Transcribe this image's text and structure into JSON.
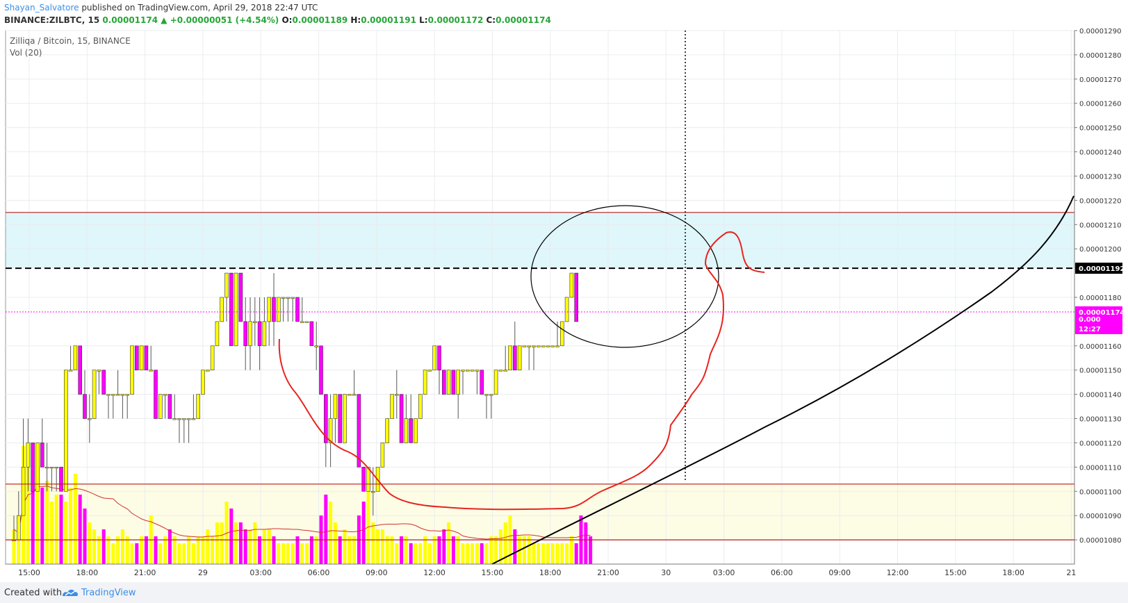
{
  "header": {
    "author": "Shayan_Salvatore",
    "published_text": " published on TradingView.com, April 29, 2018 22:47 UTC",
    "symbol": "BINANCE:ZILBTC, 15",
    "last": "0.00001174",
    "arrow": "▲",
    "change": "+0.00000051 (+4.54%)",
    "o_label": "O:",
    "o_value": "0.00001189",
    "h_label": "H:",
    "h_value": "0.00001191",
    "l_label": "L:",
    "l_value": "0.00001172",
    "c_label": "C:",
    "c_value": "0.00001174"
  },
  "legend": {
    "title": "Zilliqa / Bitcoin, 15, BINANCE",
    "vol": "Vol (20)"
  },
  "footer": {
    "created_with": "Created with",
    "brand": "TradingView"
  },
  "colors": {
    "up": "#ffff00",
    "down": "#ff00ff",
    "resistance_zone": "#dff6fa",
    "support_zone": "#fdfde6",
    "zone_line": "#b71c1c",
    "drawing_red": "#e8231e",
    "brand": "#3a8ee6"
  },
  "chart_data": {
    "type": "candlestick",
    "title": "Zilliqa / Bitcoin, 15, BINANCE",
    "x_tick_labels": [
      "15:00",
      "18:00",
      "21:00",
      "29",
      "03:00",
      "06:00",
      "09:00",
      "12:00",
      "15:00",
      "18:00",
      "21:00",
      "30",
      "03:00",
      "06:00",
      "09:00",
      "12:00",
      "15:00",
      "18:00",
      "21"
    ],
    "y_tick_labels": [
      "0.00001290",
      "0.00001280",
      "0.00001270",
      "0.00001260",
      "0.00001250",
      "0.00001240",
      "0.00001230",
      "0.00001220",
      "0.00001210",
      "0.00001200",
      "0.00001180",
      "0.00001160",
      "0.00001150",
      "0.00001140",
      "0.00001130",
      "0.00001120",
      "0.00001110",
      "0.00001100",
      "0.00001090",
      "0.00001080"
    ],
    "ylim": [
      1.07e-05,
      1.29e-05
    ],
    "price_labels": [
      {
        "value": "0.00001192",
        "color": "#000000"
      },
      {
        "value": "0.00001174",
        "color": "#ff00ff"
      },
      {
        "value": "0.000",
        "color": "#ff00ff"
      },
      {
        "value": "12:27",
        "color": "#ff00ff"
      }
    ],
    "horizontal_levels": [
      {
        "kind": "zone_top",
        "value": 1.215e-05
      },
      {
        "kind": "dashed",
        "value": 1.192e-05
      },
      {
        "kind": "current",
        "value": 1.174e-05
      },
      {
        "kind": "zone_bottom",
        "value": 1.103e-05
      },
      {
        "kind": "support_bottom",
        "value": 1.08e-05
      }
    ],
    "zones": [
      {
        "name": "resistance",
        "from": 1.192e-05,
        "to": 1.215e-05
      },
      {
        "name": "support",
        "from": 1.08e-05,
        "to": 1.103e-05
      }
    ],
    "candles": [
      {
        "o": 1.08e-05,
        "h": 1.09e-05,
        "l": 1.08e-05,
        "c": 1.08e-05
      },
      {
        "o": 1.08e-05,
        "h": 1.1e-05,
        "l": 1.08e-05,
        "c": 1.09e-05
      },
      {
        "o": 1.09e-05,
        "h": 1.13e-05,
        "l": 1.09e-05,
        "c": 1.11e-05
      },
      {
        "o": 1.11e-05,
        "h": 1.13e-05,
        "l": 1.1e-05,
        "c": 1.12e-05
      },
      {
        "o": 1.12e-05,
        "h": 1.12e-05,
        "l": 1.1e-05,
        "c": 1.1e-05
      },
      {
        "o": 1.1e-05,
        "h": 1.12e-05,
        "l": 1.1e-05,
        "c": 1.12e-05
      },
      {
        "o": 1.12e-05,
        "h": 1.13e-05,
        "l": 1.11e-05,
        "c": 1.11e-05
      },
      {
        "o": 1.11e-05,
        "h": 1.12e-05,
        "l": 1.1e-05,
        "c": 1.11e-05
      },
      {
        "o": 1.11e-05,
        "h": 1.11e-05,
        "l": 1.1e-05,
        "c": 1.11e-05
      },
      {
        "o": 1.11e-05,
        "h": 1.11e-05,
        "l": 1.1e-05,
        "c": 1.11e-05
      },
      {
        "o": 1.11e-05,
        "h": 1.11e-05,
        "l": 1.1e-05,
        "c": 1.1e-05
      },
      {
        "o": 1.1e-05,
        "h": 1.15e-05,
        "l": 1.1e-05,
        "c": 1.15e-05
      },
      {
        "o": 1.15e-05,
        "h": 1.16e-05,
        "l": 1.15e-05,
        "c": 1.15e-05
      },
      {
        "o": 1.15e-05,
        "h": 1.16e-05,
        "l": 1.15e-05,
        "c": 1.16e-05
      },
      {
        "o": 1.16e-05,
        "h": 1.16e-05,
        "l": 1.14e-05,
        "c": 1.14e-05
      },
      {
        "o": 1.14e-05,
        "h": 1.15e-05,
        "l": 1.13e-05,
        "c": 1.13e-05
      },
      {
        "o": 1.13e-05,
        "h": 1.14e-05,
        "l": 1.12e-05,
        "c": 1.13e-05
      },
      {
        "o": 1.13e-05,
        "h": 1.15e-05,
        "l": 1.13e-05,
        "c": 1.15e-05
      },
      {
        "o": 1.15e-05,
        "h": 1.15e-05,
        "l": 1.14e-05,
        "c": 1.15e-05
      },
      {
        "o": 1.15e-05,
        "h": 1.15e-05,
        "l": 1.14e-05,
        "c": 1.14e-05
      },
      {
        "o": 1.14e-05,
        "h": 1.14e-05,
        "l": 1.13e-05,
        "c": 1.14e-05
      },
      {
        "o": 1.14e-05,
        "h": 1.14e-05,
        "l": 1.13e-05,
        "c": 1.14e-05
      },
      {
        "o": 1.14e-05,
        "h": 1.15e-05,
        "l": 1.14e-05,
        "c": 1.14e-05
      },
      {
        "o": 1.14e-05,
        "h": 1.14e-05,
        "l": 1.13e-05,
        "c": 1.14e-05
      },
      {
        "o": 1.14e-05,
        "h": 1.14e-05,
        "l": 1.13e-05,
        "c": 1.14e-05
      },
      {
        "o": 1.14e-05,
        "h": 1.16e-05,
        "l": 1.14e-05,
        "c": 1.16e-05
      },
      {
        "o": 1.16e-05,
        "h": 1.16e-05,
        "l": 1.15e-05,
        "c": 1.15e-05
      },
      {
        "o": 1.15e-05,
        "h": 1.16e-05,
        "l": 1.15e-05,
        "c": 1.16e-05
      },
      {
        "o": 1.16e-05,
        "h": 1.16e-05,
        "l": 1.15e-05,
        "c": 1.15e-05
      },
      {
        "o": 1.15e-05,
        "h": 1.16e-05,
        "l": 1.15e-05,
        "c": 1.15e-05
      },
      {
        "o": 1.15e-05,
        "h": 1.15e-05,
        "l": 1.13e-05,
        "c": 1.13e-05
      },
      {
        "o": 1.13e-05,
        "h": 1.14e-05,
        "l": 1.13e-05,
        "c": 1.14e-05
      },
      {
        "o": 1.14e-05,
        "h": 1.14e-05,
        "l": 1.13e-05,
        "c": 1.14e-05
      },
      {
        "o": 1.14e-05,
        "h": 1.14e-05,
        "l": 1.13e-05,
        "c": 1.13e-05
      },
      {
        "o": 1.13e-05,
        "h": 1.14e-05,
        "l": 1.13e-05,
        "c": 1.13e-05
      },
      {
        "o": 1.13e-05,
        "h": 1.13e-05,
        "l": 1.12e-05,
        "c": 1.13e-05
      },
      {
        "o": 1.13e-05,
        "h": 1.13e-05,
        "l": 1.12e-05,
        "c": 1.13e-05
      },
      {
        "o": 1.13e-05,
        "h": 1.13e-05,
        "l": 1.12e-05,
        "c": 1.13e-05
      },
      {
        "o": 1.13e-05,
        "h": 1.14e-05,
        "l": 1.13e-05,
        "c": 1.13e-05
      },
      {
        "o": 1.13e-05,
        "h": 1.14e-05,
        "l": 1.13e-05,
        "c": 1.14e-05
      },
      {
        "o": 1.14e-05,
        "h": 1.15e-05,
        "l": 1.14e-05,
        "c": 1.15e-05
      },
      {
        "o": 1.15e-05,
        "h": 1.15e-05,
        "l": 1.15e-05,
        "c": 1.15e-05
      },
      {
        "o": 1.15e-05,
        "h": 1.16e-05,
        "l": 1.15e-05,
        "c": 1.16e-05
      },
      {
        "o": 1.16e-05,
        "h": 1.17e-05,
        "l": 1.16e-05,
        "c": 1.17e-05
      },
      {
        "o": 1.17e-05,
        "h": 1.18e-05,
        "l": 1.17e-05,
        "c": 1.18e-05
      },
      {
        "o": 1.18e-05,
        "h": 1.19e-05,
        "l": 1.17e-05,
        "c": 1.19e-05
      },
      {
        "o": 1.19e-05,
        "h": 1.19e-05,
        "l": 1.16e-05,
        "c": 1.16e-05
      },
      {
        "o": 1.16e-05,
        "h": 1.19e-05,
        "l": 1.16e-05,
        "c": 1.19e-05
      },
      {
        "o": 1.19e-05,
        "h": 1.19e-05,
        "l": 1.17e-05,
        "c": 1.17e-05
      },
      {
        "o": 1.17e-05,
        "h": 1.18e-05,
        "l": 1.15e-05,
        "c": 1.16e-05
      },
      {
        "o": 1.16e-05,
        "h": 1.18e-05,
        "l": 1.15e-05,
        "c": 1.17e-05
      },
      {
        "o": 1.17e-05,
        "h": 1.18e-05,
        "l": 1.16e-05,
        "c": 1.17e-05
      },
      {
        "o": 1.17e-05,
        "h": 1.18e-05,
        "l": 1.15e-05,
        "c": 1.16e-05
      },
      {
        "o": 1.16e-05,
        "h": 1.18e-05,
        "l": 1.16e-05,
        "c": 1.17e-05
      },
      {
        "o": 1.17e-05,
        "h": 1.18e-05,
        "l": 1.16e-05,
        "c": 1.18e-05
      },
      {
        "o": 1.18e-05,
        "h": 1.19e-05,
        "l": 1.16e-05,
        "c": 1.17e-05
      },
      {
        "o": 1.17e-05,
        "h": 1.18e-05,
        "l": 1.17e-05,
        "c": 1.18e-05
      },
      {
        "o": 1.18e-05,
        "h": 1.18e-05,
        "l": 1.17e-05,
        "c": 1.18e-05
      },
      {
        "o": 1.18e-05,
        "h": 1.18e-05,
        "l": 1.17e-05,
        "c": 1.18e-05
      },
      {
        "o": 1.18e-05,
        "h": 1.18e-05,
        "l": 1.17e-05,
        "c": 1.18e-05
      },
      {
        "o": 1.18e-05,
        "h": 1.18e-05,
        "l": 1.17e-05,
        "c": 1.17e-05
      },
      {
        "o": 1.17e-05,
        "h": 1.18e-05,
        "l": 1.17e-05,
        "c": 1.17e-05
      },
      {
        "o": 1.17e-05,
        "h": 1.17e-05,
        "l": 1.17e-05,
        "c": 1.17e-05
      },
      {
        "o": 1.17e-05,
        "h": 1.17e-05,
        "l": 1.16e-05,
        "c": 1.16e-05
      },
      {
        "o": 1.16e-05,
        "h": 1.17e-05,
        "l": 1.15e-05,
        "c": 1.16e-05
      },
      {
        "o": 1.16e-05,
        "h": 1.16e-05,
        "l": 1.14e-05,
        "c": 1.14e-05
      },
      {
        "o": 1.14e-05,
        "h": 1.14e-05,
        "l": 1.11e-05,
        "c": 1.12e-05
      },
      {
        "o": 1.12e-05,
        "h": 1.14e-05,
        "l": 1.11e-05,
        "c": 1.13e-05
      },
      {
        "o": 1.13e-05,
        "h": 1.14e-05,
        "l": 1.12e-05,
        "c": 1.14e-05
      },
      {
        "o": 1.14e-05,
        "h": 1.14e-05,
        "l": 1.12e-05,
        "c": 1.12e-05
      },
      {
        "o": 1.12e-05,
        "h": 1.14e-05,
        "l": 1.12e-05,
        "c": 1.14e-05
      },
      {
        "o": 1.14e-05,
        "h": 1.14e-05,
        "l": 1.14e-05,
        "c": 1.14e-05
      },
      {
        "o": 1.14e-05,
        "h": 1.15e-05,
        "l": 1.14e-05,
        "c": 1.14e-05
      },
      {
        "o": 1.14e-05,
        "h": 1.14e-05,
        "l": 1.11e-05,
        "c": 1.11e-05
      },
      {
        "o": 1.11e-05,
        "h": 1.11e-05,
        "l": 1.1e-05,
        "c": 1.1e-05
      },
      {
        "o": 1.1e-05,
        "h": 1.11e-05,
        "l": 1.1e-05,
        "c": 1.11e-05
      },
      {
        "o": 1.1e-05,
        "h": 1.11e-05,
        "l": 1.09e-05,
        "c": 1.1e-05
      },
      {
        "o": 1.1e-05,
        "h": 1.11e-05,
        "l": 1.1e-05,
        "c": 1.11e-05
      },
      {
        "o": 1.11e-05,
        "h": 1.12e-05,
        "l": 1.11e-05,
        "c": 1.12e-05
      },
      {
        "o": 1.12e-05,
        "h": 1.13e-05,
        "l": 1.12e-05,
        "c": 1.13e-05
      },
      {
        "o": 1.13e-05,
        "h": 1.14e-05,
        "l": 1.13e-05,
        "c": 1.14e-05
      },
      {
        "o": 1.14e-05,
        "h": 1.15e-05,
        "l": 1.13e-05,
        "c": 1.14e-05
      },
      {
        "o": 1.14e-05,
        "h": 1.14e-05,
        "l": 1.12e-05,
        "c": 1.12e-05
      },
      {
        "o": 1.12e-05,
        "h": 1.14e-05,
        "l": 1.12e-05,
        "c": 1.13e-05
      },
      {
        "o": 1.13e-05,
        "h": 1.14e-05,
        "l": 1.12e-05,
        "c": 1.12e-05
      },
      {
        "o": 1.12e-05,
        "h": 1.13e-05,
        "l": 1.12e-05,
        "c": 1.13e-05
      },
      {
        "o": 1.13e-05,
        "h": 1.14e-05,
        "l": 1.13e-05,
        "c": 1.14e-05
      },
      {
        "o": 1.14e-05,
        "h": 1.15e-05,
        "l": 1.14e-05,
        "c": 1.15e-05
      },
      {
        "o": 1.15e-05,
        "h": 1.15e-05,
        "l": 1.15e-05,
        "c": 1.15e-05
      },
      {
        "o": 1.15e-05,
        "h": 1.16e-05,
        "l": 1.15e-05,
        "c": 1.16e-05
      },
      {
        "o": 1.16e-05,
        "h": 1.16e-05,
        "l": 1.14e-05,
        "c": 1.15e-05
      },
      {
        "o": 1.15e-05,
        "h": 1.15e-05,
        "l": 1.14e-05,
        "c": 1.14e-05
      },
      {
        "o": 1.14e-05,
        "h": 1.15e-05,
        "l": 1.14e-05,
        "c": 1.15e-05
      },
      {
        "o": 1.15e-05,
        "h": 1.15e-05,
        "l": 1.14e-05,
        "c": 1.14e-05
      },
      {
        "o": 1.14e-05,
        "h": 1.15e-05,
        "l": 1.13e-05,
        "c": 1.15e-05
      },
      {
        "o": 1.15e-05,
        "h": 1.15e-05,
        "l": 1.14e-05,
        "c": 1.15e-05
      },
      {
        "o": 1.15e-05,
        "h": 1.15e-05,
        "l": 1.15e-05,
        "c": 1.15e-05
      },
      {
        "o": 1.15e-05,
        "h": 1.15e-05,
        "l": 1.15e-05,
        "c": 1.15e-05
      },
      {
        "o": 1.15e-05,
        "h": 1.15e-05,
        "l": 1.14e-05,
        "c": 1.15e-05
      },
      {
        "o": 1.15e-05,
        "h": 1.15e-05,
        "l": 1.14e-05,
        "c": 1.14e-05
      },
      {
        "o": 1.14e-05,
        "h": 1.14e-05,
        "l": 1.13e-05,
        "c": 1.14e-05
      },
      {
        "o": 1.14e-05,
        "h": 1.14e-05,
        "l": 1.13e-05,
        "c": 1.14e-05
      },
      {
        "o": 1.14e-05,
        "h": 1.15e-05,
        "l": 1.14e-05,
        "c": 1.15e-05
      },
      {
        "o": 1.15e-05,
        "h": 1.15e-05,
        "l": 1.15e-05,
        "c": 1.15e-05
      },
      {
        "o": 1.15e-05,
        "h": 1.16e-05,
        "l": 1.15e-05,
        "c": 1.15e-05
      },
      {
        "o": 1.15e-05,
        "h": 1.16e-05,
        "l": 1.15e-05,
        "c": 1.16e-05
      },
      {
        "o": 1.16e-05,
        "h": 1.17e-05,
        "l": 1.15e-05,
        "c": 1.15e-05
      },
      {
        "o": 1.15e-05,
        "h": 1.16e-05,
        "l": 1.15e-05,
        "c": 1.16e-05
      },
      {
        "o": 1.16e-05,
        "h": 1.16e-05,
        "l": 1.16e-05,
        "c": 1.16e-05
      },
      {
        "o": 1.16e-05,
        "h": 1.16e-05,
        "l": 1.15e-05,
        "c": 1.16e-05
      },
      {
        "o": 1.16e-05,
        "h": 1.16e-05,
        "l": 1.15e-05,
        "c": 1.16e-05
      },
      {
        "o": 1.16e-05,
        "h": 1.16e-05,
        "l": 1.16e-05,
        "c": 1.16e-05
      },
      {
        "o": 1.16e-05,
        "h": 1.16e-05,
        "l": 1.16e-05,
        "c": 1.16e-05
      },
      {
        "o": 1.16e-05,
        "h": 1.16e-05,
        "l": 1.16e-05,
        "c": 1.16e-05
      },
      {
        "o": 1.16e-05,
        "h": 1.16e-05,
        "l": 1.16e-05,
        "c": 1.16e-05
      },
      {
        "o": 1.16e-05,
        "h": 1.17e-05,
        "l": 1.16e-05,
        "c": 1.16e-05
      },
      {
        "o": 1.16e-05,
        "h": 1.17e-05,
        "l": 1.16e-05,
        "c": 1.17e-05
      },
      {
        "o": 1.17e-05,
        "h": 1.18e-05,
        "l": 1.17e-05,
        "c": 1.18e-05
      },
      {
        "o": 1.18e-05,
        "h": 1.19e-05,
        "l": 1.18e-05,
        "c": 1.19e-05
      },
      {
        "o": 1.19e-05,
        "h": 1.19e-05,
        "l": 1.17e-05,
        "c": 1.17e-05
      }
    ],
    "volume": [
      0.25,
      0.2,
      0.85,
      0.7,
      0.55,
      0.8,
      0.55,
      0.6,
      0.45,
      0.5,
      0.5,
      0.45,
      0.55,
      0.65,
      0.5,
      0.4,
      0.3,
      0.25,
      0.2,
      0.25,
      0.2,
      0.15,
      0.2,
      0.25,
      0.2,
      0.15,
      0.15,
      0.2,
      0.2,
      0.35,
      0.2,
      0.15,
      0.2,
      0.25,
      0.2,
      0.15,
      0.15,
      0.2,
      0.15,
      0.2,
      0.2,
      0.25,
      0.2,
      0.3,
      0.3,
      0.45,
      0.4,
      0.3,
      0.3,
      0.25,
      0.25,
      0.3,
      0.2,
      0.25,
      0.25,
      0.2,
      0.15,
      0.15,
      0.15,
      0.15,
      0.2,
      0.15,
      0.15,
      0.2,
      0.2,
      0.35,
      0.5,
      0.45,
      0.3,
      0.2,
      0.25,
      0.2,
      0.2,
      0.35,
      0.45,
      0.6,
      0.3,
      0.25,
      0.25,
      0.2,
      0.2,
      0.15,
      0.2,
      0.2,
      0.15,
      0.15,
      0.15,
      0.2,
      0.15,
      0.2,
      0.2,
      0.25,
      0.3,
      0.2,
      0.2,
      0.15,
      0.15,
      0.15,
      0.15,
      0.15,
      0.15,
      0.2,
      0.2,
      0.25,
      0.3,
      0.35,
      0.25,
      0.2,
      0.2,
      0.2,
      0.15,
      0.15,
      0.15,
      0.15,
      0.15,
      0.15,
      0.15,
      0.15,
      0.2,
      0.15,
      0.35,
      0.3,
      0.2
    ],
    "volume_ma_note": "Vol (20)"
  }
}
